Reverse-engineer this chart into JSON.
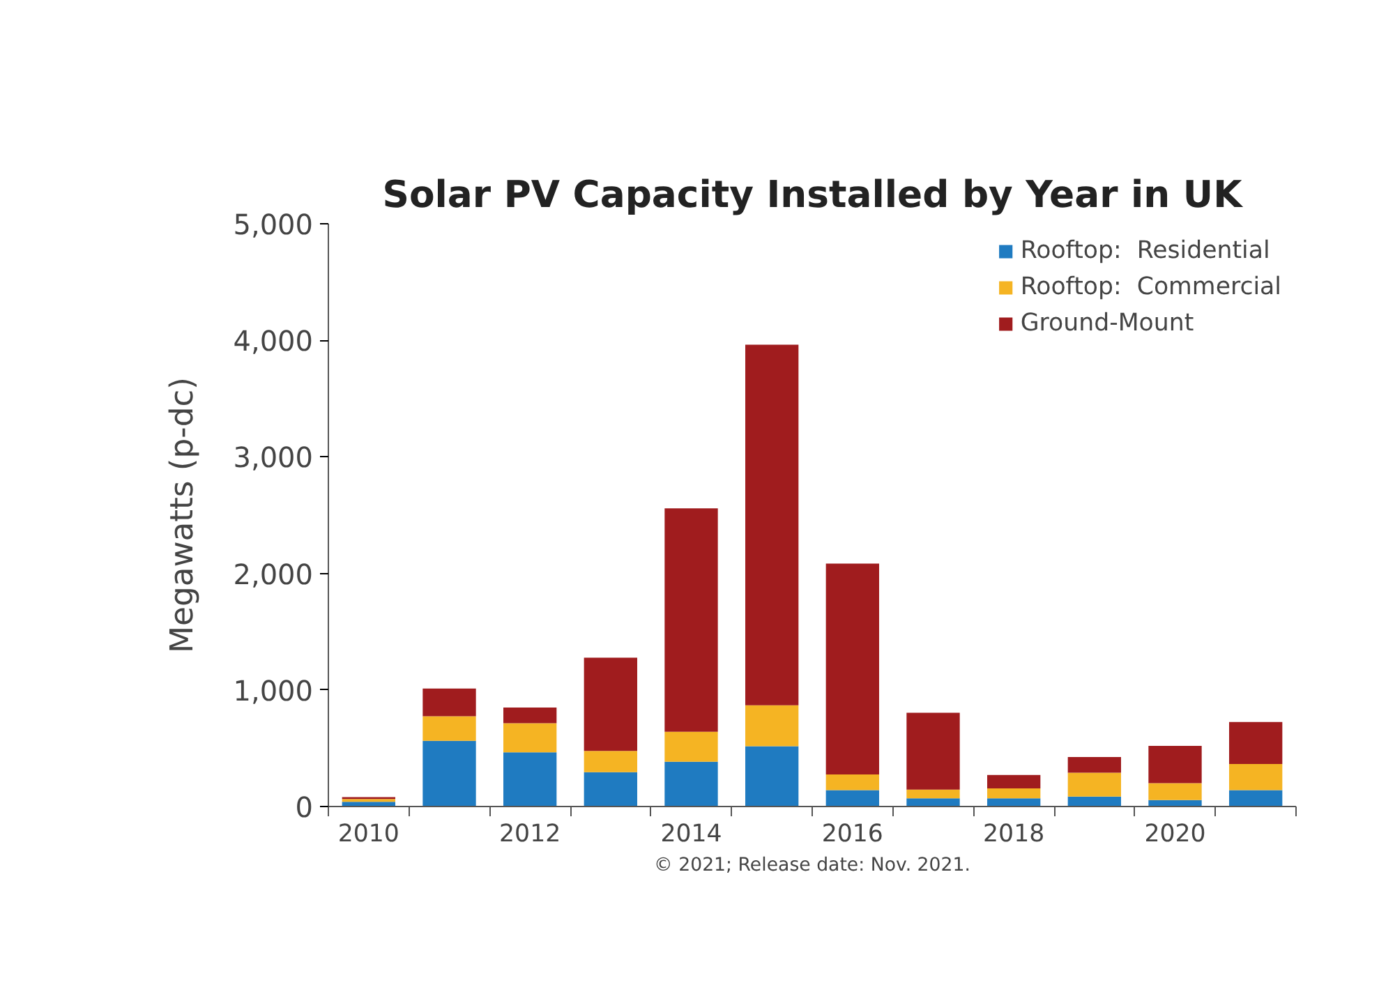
{
  "chart_data": {
    "type": "bar",
    "title": "Solar PV Capacity Installed by Year in UK",
    "ylabel": "Megawatts (p-dc)",
    "stacked": true,
    "categories": [
      "2010",
      null,
      "2012",
      null,
      "2014",
      null,
      "2016",
      null,
      "2018",
      null,
      "2020",
      null
    ],
    "series": [
      {
        "name": "Rooftop:  Residential",
        "color": "#1f7bc1",
        "values": [
          40,
          563,
          465,
          294,
          384,
          518,
          140,
          70,
          70,
          85,
          55,
          140
        ]
      },
      {
        "name": "Rooftop:  Commercial",
        "color": "#f5b423",
        "values": [
          25,
          212,
          249,
          183,
          257,
          351,
          135,
          75,
          85,
          205,
          145,
          225
        ]
      },
      {
        "name": "Ground-Mount",
        "color": "#a01c1e",
        "values": [
          15,
          237,
          135,
          800,
          1917,
          3093,
          1810,
          660,
          115,
          135,
          320,
          360
        ]
      }
    ],
    "ylim": [
      0,
      5000
    ],
    "yticks": [
      {
        "value": 0,
        "label": "0"
      },
      {
        "value": 1000,
        "label": "1,000"
      },
      {
        "value": 2000,
        "label": "2,000"
      },
      {
        "value": 3000,
        "label": "3,000"
      },
      {
        "value": 4000,
        "label": "4,000"
      },
      {
        "value": 5000,
        "label": "5,000"
      }
    ],
    "grid": false,
    "legend": "top right",
    "annotations": [
      "© 2021; Release date: Nov. 2021."
    ]
  }
}
